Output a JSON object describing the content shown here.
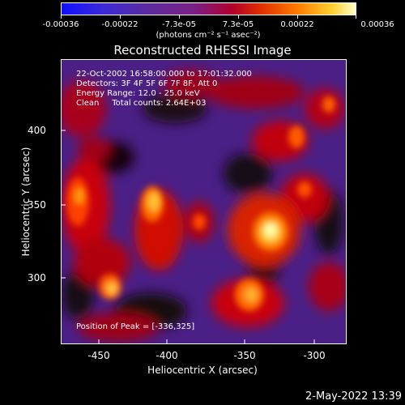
{
  "colorbar": {
    "tick_labels": [
      "-0.00036",
      "-0.00022",
      "-7.3e-05",
      "7.3e-05",
      "0.00022",
      "0.00036"
    ],
    "units": "(photons cm⁻² s⁻¹ asec⁻²)"
  },
  "title": "Reconstructed RHESSI Image",
  "info": {
    "time": "22-Oct-2002 16:58:00.000 to 17:01:32.000",
    "detectors": "Detectors: 3F 4F 5F 6F 7F 8F, Att 0",
    "energy": "Energy Range: 12.0 - 25.0 keV",
    "clean": "Clean     Total counts: 2.64E+03",
    "peak": "Position of Peak = [-336,325]"
  },
  "axes": {
    "xlabel": "Heliocentric X (arcsec)",
    "ylabel": "Heliocentric Y (arcsec)",
    "xticks": [
      "-450",
      "-400",
      "-350",
      "-300"
    ],
    "yticks": [
      "400",
      "350",
      "300"
    ]
  },
  "datestamp": "2-May-2022 13:39",
  "colors": {
    "background": "#000000",
    "low": "#5a2a9e",
    "high": "#ffffc8"
  }
}
